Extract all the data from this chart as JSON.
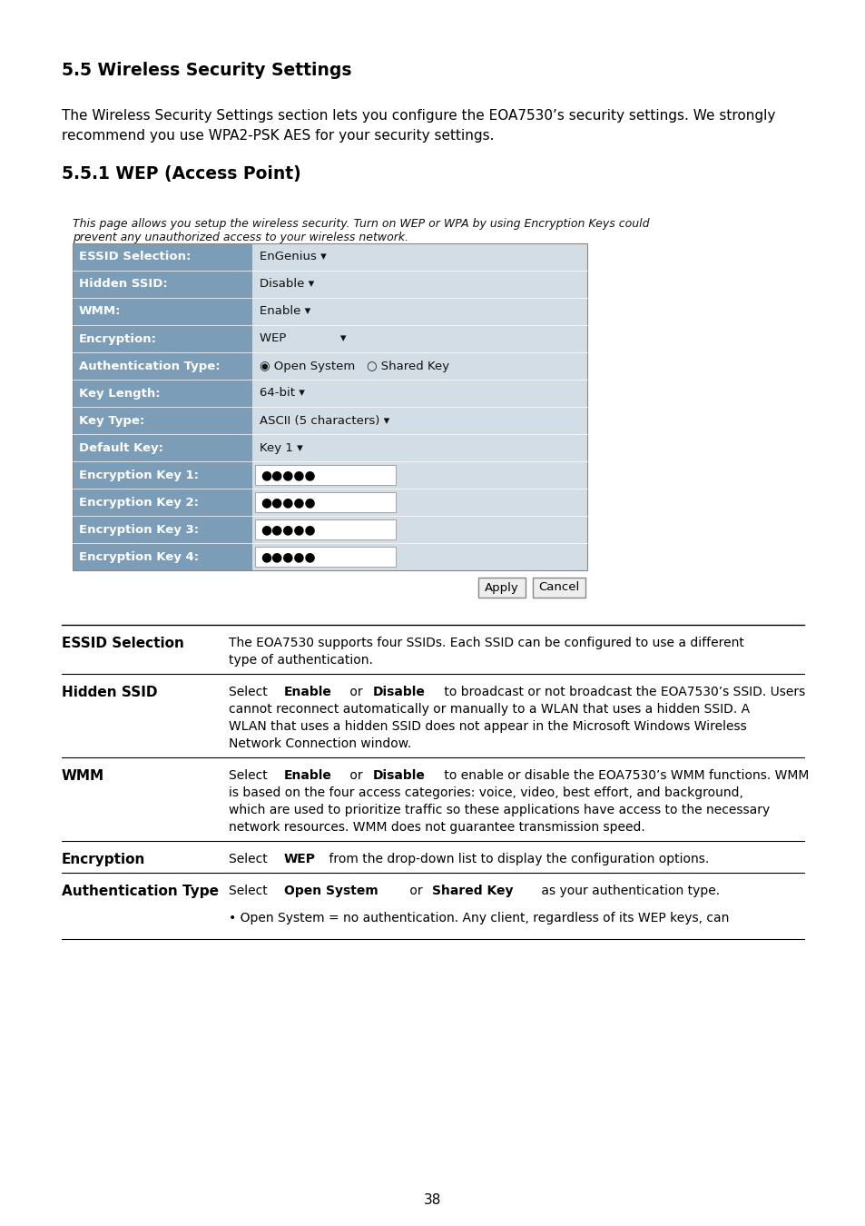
{
  "title1": "5.5 Wireless Security Settings",
  "para1_line1": "The Wireless Security Settings section lets you configure the EOA7530’s security settings. We strongly",
  "para1_line2": "recommend you use WPA2-PSK AES for your security settings.",
  "title2": "5.5.1 WEP (Access Point)",
  "notice_line1": "This page allows you setup the wireless security. Turn on WEP or WPA by using Encryption Keys could",
  "notice_line2": "prevent any unauthorized access to your wireless network.",
  "form_rows": [
    {
      "label": "ESSID Selection:",
      "value": "EnGenius ▾",
      "type": "dropdown"
    },
    {
      "label": "Hidden SSID:",
      "value": "Disable ▾",
      "type": "dropdown"
    },
    {
      "label": "WMM:",
      "value": "Enable ▾",
      "type": "dropdown"
    },
    {
      "label": "Encryption:",
      "value": "WEP              ▾",
      "type": "dropdown_wide"
    },
    {
      "label": "Authentication Type:",
      "value": "◉ Open System   ○ Shared Key",
      "type": "radio"
    },
    {
      "label": "Key Length:",
      "value": "64-bit ▾",
      "type": "dropdown"
    },
    {
      "label": "Key Type:",
      "value": "ASCII (5 characters) ▾",
      "type": "dropdown"
    },
    {
      "label": "Default Key:",
      "value": "Key 1 ▾",
      "type": "dropdown"
    },
    {
      "label": "Encryption Key 1:",
      "value": "●●●●●",
      "type": "password"
    },
    {
      "label": "Encryption Key 2:",
      "value": "●●●●●",
      "type": "password"
    },
    {
      "label": "Encryption Key 3:",
      "value": "●●●●●",
      "type": "password"
    },
    {
      "label": "Encryption Key 4:",
      "value": "●●●●●",
      "type": "password"
    }
  ],
  "table_rows": [
    {
      "term": "ESSID Selection",
      "desc_parts": [
        [
          {
            "text": "The EOA7530 supports four SSIDs. Each SSID can be configured to use a different",
            "bold": false
          }
        ],
        [
          {
            "text": "type of authentication.",
            "bold": false
          }
        ]
      ]
    },
    {
      "term": "Hidden SSID",
      "desc_parts": [
        [
          {
            "text": "Select ",
            "bold": false
          },
          {
            "text": "Enable",
            "bold": true
          },
          {
            "text": " or ",
            "bold": false
          },
          {
            "text": "Disable",
            "bold": true
          },
          {
            "text": " to broadcast or not broadcast the EOA7530’s SSID. Users",
            "bold": false
          }
        ],
        [
          {
            "text": "cannot reconnect automatically or manually to a WLAN that uses a hidden SSID. A",
            "bold": false
          }
        ],
        [
          {
            "text": "WLAN that uses a hidden SSID does not appear in the Microsoft Windows Wireless",
            "bold": false
          }
        ],
        [
          {
            "text": "Network Connection window.",
            "bold": false
          }
        ]
      ]
    },
    {
      "term": "WMM",
      "desc_parts": [
        [
          {
            "text": "Select ",
            "bold": false
          },
          {
            "text": "Enable",
            "bold": true
          },
          {
            "text": " or ",
            "bold": false
          },
          {
            "text": "Disable",
            "bold": true
          },
          {
            "text": " to enable or disable the EOA7530’s WMM functions. WMM",
            "bold": false
          }
        ],
        [
          {
            "text": "is based on the four access categories: voice, video, best effort, and background,",
            "bold": false
          }
        ],
        [
          {
            "text": "which are used to prioritize traffic so these applications have access to the necessary",
            "bold": false
          }
        ],
        [
          {
            "text": "network resources. WMM does not guarantee transmission speed.",
            "bold": false
          }
        ]
      ]
    },
    {
      "term": "Encryption",
      "desc_parts": [
        [
          {
            "text": "Select ",
            "bold": false
          },
          {
            "text": "WEP",
            "bold": true
          },
          {
            "text": " from the drop-down list to display the configuration options.",
            "bold": false
          }
        ]
      ]
    },
    {
      "term": "Authentication Type",
      "desc_parts": [
        [
          {
            "text": "Select ",
            "bold": false
          },
          {
            "text": "Open System",
            "bold": true
          },
          {
            "text": " or ",
            "bold": false
          },
          {
            "text": "Shared Key",
            "bold": true
          },
          {
            "text": " as your authentication type.",
            "bold": false
          }
        ],
        [
          {
            "text": "",
            "bold": false
          }
        ],
        [
          {
            "text": "• Open System = no authentication. Any client, regardless of its WEP keys, can",
            "bold": false
          }
        ]
      ]
    }
  ],
  "page_number": "38",
  "header_color": "#7b9db8",
  "header_text_color": "#ffffff",
  "bg_color": "#d3dde6",
  "notice_color": "#000000"
}
